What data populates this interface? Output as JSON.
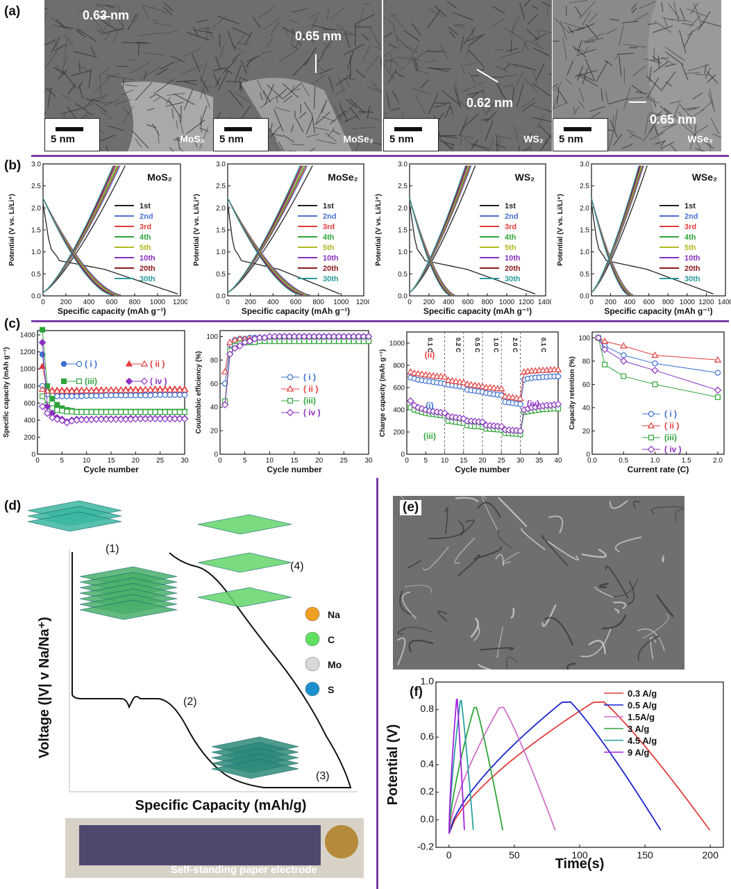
{
  "panel_labels": {
    "a": "(a)",
    "b": "(b)",
    "c": "(c)",
    "d": "(d)",
    "e": "(e)",
    "f": "(f)"
  },
  "tem": [
    {
      "material": "MoS₂",
      "spacing": "0.63 nm",
      "scale": "5 nm"
    },
    {
      "material": "MoSe₂",
      "spacing": "0.65 nm",
      "scale": "5 nm"
    },
    {
      "material": "WS₂",
      "spacing": "0.62 nm",
      "scale": "5 nm"
    },
    {
      "material": "WSe₂",
      "spacing": "0.65 nm",
      "scale": "5 nm"
    }
  ],
  "colors": {
    "separator": "#7a3aa8",
    "c1": "#222222",
    "c2": "#4a6fd0",
    "c3": "#e23b3b",
    "c4": "#2fa43a",
    "c5": "#b0b820",
    "c6": "#8a2fc0",
    "c7": "#8a1a1a",
    "c8": "#2a9a9a"
  },
  "chart_data": [
    {
      "type": "line",
      "panel": "b1",
      "title": "MoS₂",
      "xlabel": "Specific capacity (mAh g⁻¹)",
      "ylabel": "Potential (V vs. Li/Li⁺)",
      "xlim": [
        0,
        1200
      ],
      "ylim": [
        0,
        3.0
      ],
      "xticks": [
        0,
        200,
        400,
        600,
        800,
        1000,
        1200
      ],
      "yticks": [
        0.0,
        0.5,
        1.0,
        1.5,
        2.0,
        2.5,
        3.0
      ],
      "legend": [
        "1st",
        "2nd",
        "3rd",
        "4th",
        "5th",
        "10th",
        "20th",
        "30th"
      ],
      "first_discharge_end": 1200,
      "discharge_end": 700,
      "charge_end": 690
    },
    {
      "type": "line",
      "panel": "b2",
      "title": "MoSe₂",
      "xlabel": "Specific capacity (mAh g⁻¹)",
      "ylabel": "Potential (V vs. Li/Li⁺)",
      "xlim": [
        0,
        1200
      ],
      "ylim": [
        0,
        3.0
      ],
      "xticks": [
        0,
        200,
        400,
        600,
        800,
        1000,
        1200
      ],
      "yticks": [
        0.0,
        0.5,
        1.0,
        1.5,
        2.0,
        2.5,
        3.0
      ],
      "legend": [
        "1st",
        "2nd",
        "3rd",
        "4th",
        "5th",
        "10th",
        "20th",
        "30th"
      ],
      "first_discharge_end": 1010,
      "discharge_end": 750,
      "charge_end": 720
    },
    {
      "type": "line",
      "panel": "b3",
      "title": "WS₂",
      "xlabel": "Specific capacity (mAh g⁻¹)",
      "ylabel": "Potential (V vs. Li/Li⁺)",
      "xlim": [
        0,
        1400
      ],
      "ylim": [
        0,
        3.0
      ],
      "xticks": [
        0,
        200,
        400,
        600,
        800,
        1000,
        1200,
        1400
      ],
      "yticks": [
        0.0,
        0.5,
        1.0,
        1.5,
        2.0,
        2.5,
        3.0
      ],
      "legend": [
        "1st",
        "2nd",
        "3rd",
        "4th",
        "5th",
        "10th",
        "20th",
        "30th"
      ],
      "first_discharge_end": 1320,
      "discharge_end": 480,
      "charge_end": 650
    },
    {
      "type": "line",
      "panel": "b4",
      "title": "WSe₂",
      "xlabel": "Specific capacity (mAh g⁻¹)",
      "ylabel": "Potential (V vs. Li/Li⁺)",
      "xlim": [
        0,
        1400
      ],
      "ylim": [
        0,
        3.0
      ],
      "xticks": [
        0,
        200,
        400,
        600,
        800,
        1000,
        1200,
        1400
      ],
      "yticks": [
        0.0,
        0.5,
        1.0,
        1.5,
        2.0,
        2.5,
        3.0
      ],
      "legend": [
        "1st",
        "2nd",
        "3rd",
        "4th",
        "5th",
        "10th",
        "20th",
        "30th"
      ],
      "first_discharge_end": 1300,
      "discharge_end": 450,
      "charge_end": 560
    },
    {
      "type": "line",
      "panel": "c1",
      "xlabel": "Cycle number",
      "ylabel": "Specific capacity (mAh g⁻¹)",
      "xlim": [
        0,
        30
      ],
      "ylim": [
        0,
        1450
      ],
      "xticks": [
        0,
        5,
        10,
        15,
        20,
        25,
        30
      ],
      "yticks": [
        0,
        200,
        400,
        600,
        800,
        1000,
        1200,
        1400
      ],
      "legend": [
        "( i )",
        "( ii )",
        "(iii)",
        "( iv )"
      ],
      "x": [
        1,
        2,
        3,
        4,
        5,
        6,
        7,
        8,
        9,
        10,
        11,
        12,
        13,
        14,
        15,
        16,
        17,
        18,
        19,
        20,
        21,
        22,
        23,
        24,
        25,
        26,
        27,
        28,
        29,
        30
      ],
      "series": [
        {
          "name": "( i )",
          "discharge": [
            1170,
            720,
            690,
            690,
            690,
            690,
            690,
            690,
            690,
            690,
            690,
            690,
            690,
            690,
            690,
            695,
            695,
            695,
            695,
            695,
            695,
            695,
            695,
            700,
            700,
            700,
            700,
            700,
            700,
            700
          ],
          "charge": [
            800,
            700,
            690,
            680,
            680,
            680,
            680,
            680,
            680,
            685,
            685,
            685,
            685,
            690,
            690,
            690,
            690,
            690,
            690,
            690,
            690,
            690,
            690,
            695,
            695,
            695,
            695,
            695,
            695,
            695
          ]
        },
        {
          "name": "( ii )",
          "discharge": [
            1030,
            760,
            750,
            750,
            750,
            750,
            750,
            750,
            750,
            750,
            750,
            755,
            755,
            755,
            755,
            755,
            755,
            760,
            760,
            760,
            760,
            760,
            760,
            765,
            765,
            765,
            765,
            765,
            765,
            765
          ],
          "charge": [
            760,
            740,
            740,
            740,
            740,
            740,
            740,
            740,
            745,
            745,
            745,
            745,
            745,
            750,
            750,
            750,
            750,
            750,
            750,
            750,
            750,
            755,
            755,
            755,
            755,
            755,
            755,
            755,
            755,
            755
          ]
        },
        {
          "name": "(iii)",
          "discharge": [
            1460,
            800,
            650,
            580,
            540,
            520,
            510,
            500,
            500,
            500,
            500,
            500,
            500,
            500,
            500,
            500,
            500,
            500,
            500,
            500,
            500,
            500,
            500,
            500,
            500,
            500,
            500,
            500,
            500,
            500
          ],
          "charge": [
            680,
            580,
            540,
            520,
            510,
            500,
            500,
            495,
            495,
            495,
            495,
            495,
            495,
            495,
            495,
            495,
            495,
            495,
            495,
            495,
            495,
            495,
            495,
            495,
            495,
            495,
            495,
            495,
            495,
            495
          ]
        },
        {
          "name": "( iv )",
          "discharge": [
            1310,
            560,
            480,
            430,
            410,
            380,
            400,
            410,
            410,
            410,
            410,
            410,
            415,
            415,
            415,
            415,
            415,
            415,
            420,
            420,
            420,
            420,
            420,
            420,
            420,
            420,
            420,
            420,
            420,
            420
          ],
          "charge": [
            560,
            480,
            430,
            410,
            395,
            370,
            390,
            400,
            405,
            405,
            405,
            410,
            410,
            410,
            410,
            410,
            410,
            410,
            410,
            415,
            415,
            415,
            415,
            415,
            415,
            415,
            415,
            415,
            415,
            415
          ]
        }
      ]
    },
    {
      "type": "line",
      "panel": "c2",
      "xlabel": "Cycle number",
      "ylabel": "Coulombic efficiency (%)",
      "xlim": [
        0,
        30
      ],
      "ylim": [
        0,
        105
      ],
      "xticks": [
        0,
        5,
        10,
        15,
        20,
        25,
        30
      ],
      "yticks": [
        0,
        20,
        40,
        60,
        80,
        100
      ],
      "legend": [
        "( i )",
        "( ii )",
        "(iii)",
        "( iv )"
      ],
      "x": [
        1,
        2,
        3,
        4,
        5,
        6,
        7,
        8,
        9,
        10,
        11,
        12,
        13,
        14,
        15,
        16,
        17,
        18,
        19,
        20,
        21,
        22,
        23,
        24,
        25,
        26,
        27,
        28,
        29,
        30
      ],
      "series": [
        {
          "name": "( i )",
          "values": [
            60,
            93,
            97,
            98,
            98,
            99,
            99,
            99,
            99,
            99,
            99,
            100,
            100,
            100,
            100,
            100,
            100,
            100,
            100,
            100,
            100,
            100,
            100,
            100,
            100,
            100,
            100,
            100,
            100,
            100
          ]
        },
        {
          "name": "( ii )",
          "values": [
            70,
            95,
            97,
            98,
            98,
            98,
            98,
            98,
            98,
            98,
            98,
            98,
            98,
            98,
            98,
            98,
            98,
            98,
            98,
            98,
            98,
            98,
            98,
            98,
            98,
            98,
            98,
            98,
            98,
            98
          ]
        },
        {
          "name": "(iii)",
          "values": [
            45,
            88,
            92,
            94,
            95,
            95,
            95,
            96,
            96,
            96,
            96,
            96,
            96,
            96,
            96,
            96,
            96,
            96,
            96,
            96,
            96,
            96,
            96,
            96,
            96,
            96,
            96,
            96,
            96,
            96
          ]
        },
        {
          "name": "( iv )",
          "values": [
            42,
            85,
            90,
            92,
            95,
            96,
            98,
            99,
            99,
            100,
            100,
            100,
            100,
            100,
            100,
            100,
            100,
            100,
            100,
            100,
            100,
            100,
            100,
            100,
            100,
            100,
            100,
            100,
            100,
            100
          ]
        }
      ]
    },
    {
      "type": "line",
      "panel": "c3",
      "xlabel": "Cycle number",
      "ylabel": "Charge capacity (mAh g⁻¹)",
      "xlim": [
        0,
        40
      ],
      "ylim": [
        0,
        1100
      ],
      "xticks": [
        0,
        5,
        10,
        15,
        20,
        25,
        30,
        35,
        40
      ],
      "yticks": [
        0,
        200,
        400,
        600,
        800,
        1000
      ],
      "rate_labels": [
        "0.1 C",
        "0.2 C",
        "0.5 C",
        "1.0 C",
        "2.0 C",
        "0.1 C"
      ],
      "rate_bounds": [
        10,
        15,
        20,
        25,
        30
      ],
      "curve_labels": [
        {
          "text": "(ii)"
        },
        {
          "text": "(i)"
        },
        {
          "text": "(iii)"
        },
        {
          "text": "(iv)"
        }
      ],
      "x": [
        1,
        2,
        3,
        4,
        5,
        6,
        7,
        8,
        9,
        10,
        11,
        12,
        13,
        14,
        15,
        16,
        17,
        18,
        19,
        20,
        21,
        22,
        23,
        24,
        25,
        26,
        27,
        28,
        29,
        30,
        31,
        32,
        33,
        34,
        35,
        36,
        37,
        38,
        39,
        40
      ],
      "series": [
        {
          "name": "(i)",
          "values": [
            690,
            680,
            670,
            665,
            660,
            655,
            650,
            645,
            640,
            635,
            625,
            620,
            615,
            610,
            605,
            580,
            575,
            570,
            565,
            560,
            550,
            545,
            540,
            535,
            530,
            470,
            465,
            460,
            455,
            450,
            670,
            680,
            685,
            690,
            690,
            695,
            695,
            700,
            700,
            700
          ]
        },
        {
          "name": "(ii)",
          "values": [
            740,
            730,
            725,
            720,
            715,
            710,
            705,
            700,
            700,
            695,
            665,
            660,
            655,
            650,
            645,
            630,
            625,
            620,
            615,
            610,
            600,
            600,
            595,
            590,
            590,
            520,
            515,
            510,
            505,
            500,
            740,
            745,
            750,
            750,
            755,
            755,
            755,
            760,
            760,
            760
          ]
        },
        {
          "name": "(iii)",
          "values": [
            420,
            400,
            390,
            380,
            370,
            365,
            360,
            355,
            350,
            345,
            300,
            295,
            290,
            285,
            280,
            260,
            255,
            250,
            250,
            245,
            230,
            228,
            225,
            222,
            220,
            190,
            188,
            185,
            183,
            180,
            380,
            385,
            390,
            395,
            400,
            405,
            405,
            410,
            410,
            410
          ]
        },
        {
          "name": "(iv)",
          "values": [
            480,
            440,
            420,
            410,
            400,
            390,
            385,
            380,
            375,
            370,
            340,
            335,
            330,
            325,
            320,
            300,
            298,
            295,
            292,
            290,
            260,
            258,
            255,
            252,
            250,
            220,
            218,
            215,
            213,
            210,
            400,
            410,
            420,
            425,
            430,
            435,
            440,
            440,
            445,
            450
          ]
        }
      ]
    },
    {
      "type": "line",
      "panel": "c4",
      "xlabel": "Current rate (C)",
      "ylabel": "Capacity retention (%)",
      "xlim": [
        0,
        2.1
      ],
      "ylim": [
        0,
        105
      ],
      "xticks": [
        0.0,
        0.5,
        1.0,
        1.5,
        2.0
      ],
      "yticks": [
        0,
        20,
        40,
        60,
        80,
        100
      ],
      "legend": [
        "( i )",
        "( ii )",
        "(iii)",
        "( iv )"
      ],
      "x": [
        0.1,
        0.2,
        0.5,
        1.0,
        2.0
      ],
      "series": [
        {
          "name": "( i )",
          "values": [
            100,
            93,
            85,
            78,
            70
          ]
        },
        {
          "name": "( ii )",
          "values": [
            100,
            97,
            93,
            85,
            81
          ]
        },
        {
          "name": "(iii)",
          "values": [
            100,
            77,
            67,
            60,
            49
          ]
        },
        {
          "name": "( iv )",
          "values": [
            100,
            90,
            80,
            72,
            55
          ]
        }
      ]
    },
    {
      "type": "line",
      "panel": "d",
      "xlabel": "Specific Capacity (mAh/g)",
      "ylabel": "Voltage (|V| v Na/Na⁺)",
      "stage_labels": [
        "(1)",
        "(2)",
        "(3)",
        "(4)"
      ],
      "legend": [
        "Na",
        "C",
        "Mo",
        "S"
      ],
      "photo_caption": "Self-standing paper electrode"
    },
    {
      "type": "line",
      "panel": "f",
      "xlabel": "Time(s)",
      "ylabel": "Potential (V)",
      "xlim": [
        -10,
        210
      ],
      "ylim": [
        -0.2,
        1.0
      ],
      "xticks": [
        0,
        50,
        100,
        150,
        200
      ],
      "yticks": [
        -0.2,
        0.0,
        0.2,
        0.4,
        0.6,
        0.8,
        1.0
      ],
      "series": [
        {
          "name": "0.3 A/g",
          "peak_time": 115,
          "peak_v": 0.88,
          "end_time": 203,
          "end_v": -0.12
        },
        {
          "name": "0.5 A/g",
          "peak_time": 90,
          "peak_v": 0.88,
          "end_time": 165,
          "end_v": -0.12
        },
        {
          "name": "1.5A/g",
          "peak_time": 40,
          "peak_v": 0.84,
          "end_time": 83,
          "end_v": -0.12
        },
        {
          "name": "3 A/g",
          "peak_time": 20,
          "peak_v": 0.84,
          "end_time": 42,
          "end_v": -0.12
        },
        {
          "name": "4.5 A/g",
          "peak_time": 9,
          "peak_v": 0.89,
          "end_time": 19,
          "end_v": -0.12
        },
        {
          "name": "9 A/g",
          "peak_time": 6,
          "peak_v": 0.9,
          "end_time": 12,
          "end_v": -0.12
        }
      ]
    }
  ]
}
